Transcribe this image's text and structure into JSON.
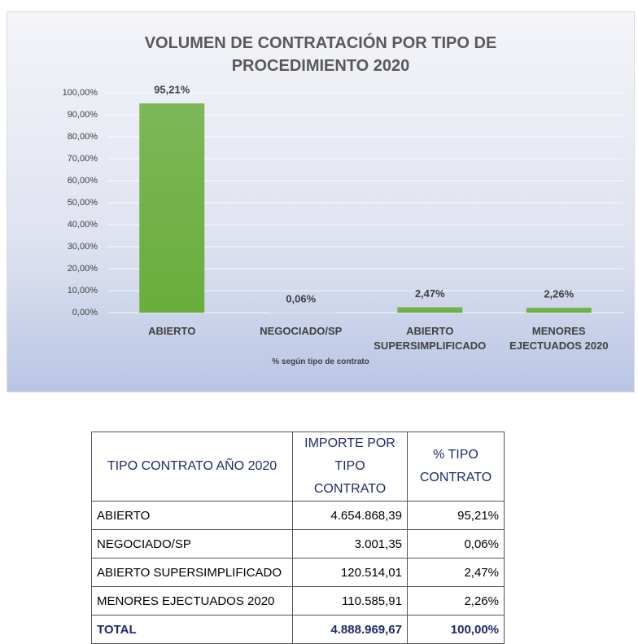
{
  "chart_data": {
    "type": "bar",
    "title": "VOLUMEN DE CONTRATACIÓN POR TIPO DE PROCEDIMIENTO 2020",
    "categories": [
      "ABIERTO",
      "NEGOCIADO/SP",
      "ABIERTO SUPERSIMPLIFICADO",
      "MENORES EJECTUADOS 2020"
    ],
    "values": [
      95.21,
      0.06,
      2.47,
      2.26
    ],
    "value_labels": [
      "95,21%",
      "0,06%",
      "2,47%",
      "2,26%"
    ],
    "color": "#6aae3c",
    "x_label": "% según tipo de contrato",
    "ylim": [
      0,
      100
    ],
    "yticks": [
      {
        "value": 0,
        "label": "0,00%"
      },
      {
        "value": 10,
        "label": "10,00%"
      },
      {
        "value": 20,
        "label": "20,00%"
      },
      {
        "value": 30,
        "label": "30,00%"
      },
      {
        "value": 40,
        "label": "40,00%"
      },
      {
        "value": 50,
        "label": "50,00%"
      },
      {
        "value": 60,
        "label": "60,00%"
      },
      {
        "value": 70,
        "label": "70,00%"
      },
      {
        "value": 80,
        "label": "80,00%"
      },
      {
        "value": 90,
        "label": "90,00%"
      },
      {
        "value": 100,
        "label": "100,00%"
      }
    ],
    "grid": true
  },
  "table": {
    "header": [
      "TIPO CONTRATO AÑO 2020",
      "IMPORTE POR TIPO CONTRATO",
      "% TIPO CONTRATO"
    ],
    "rows": [
      [
        "ABIERTO",
        "4.654.868,39",
        "95,21%"
      ],
      [
        "NEGOCIADO/SP",
        "3.001,35",
        "0,06%"
      ],
      [
        "ABIERTO SUPERSIMPLIFICADO",
        "120.514,01",
        "2,47%"
      ],
      [
        "MENORES EJECTUADOS 2020",
        "110.585,91",
        "2,26%"
      ]
    ],
    "total": [
      "TOTAL",
      "4.888.969,67",
      "100,00%"
    ]
  }
}
